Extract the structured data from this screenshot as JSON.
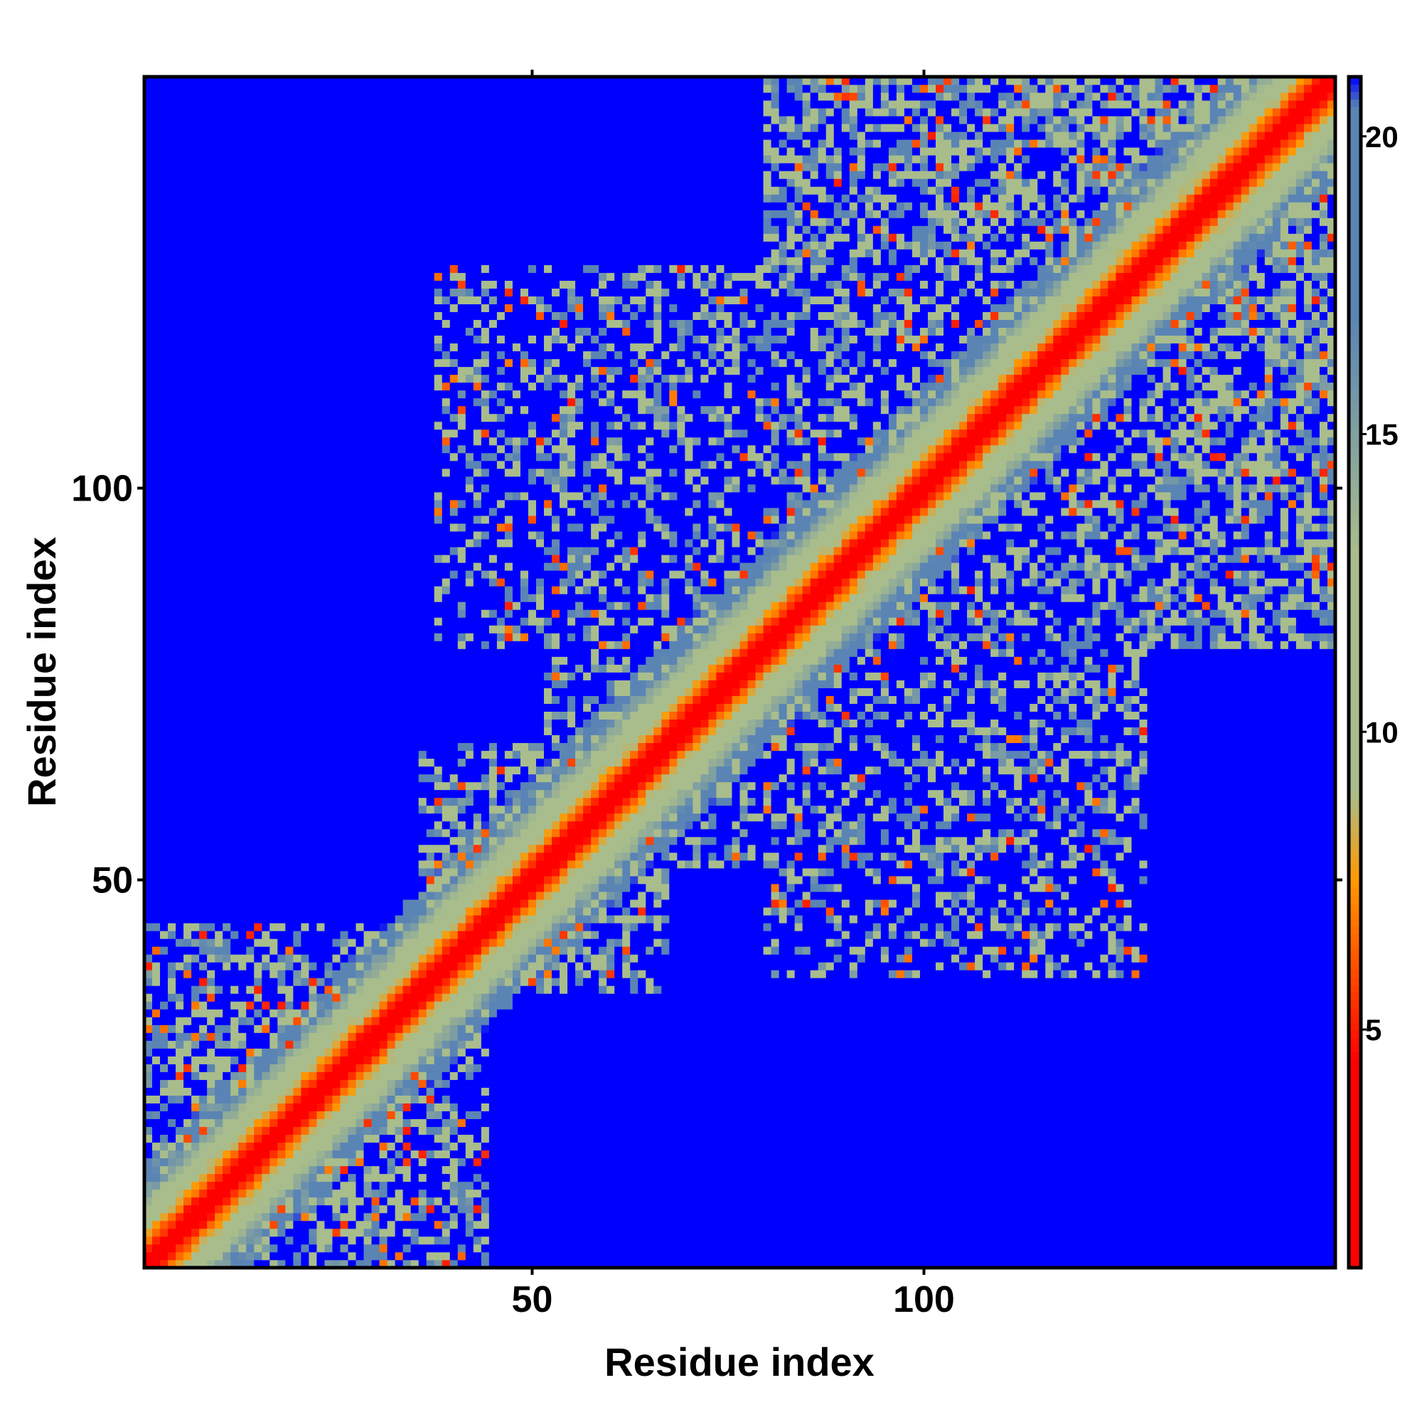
{
  "chart_data": {
    "type": "heatmap",
    "title": "",
    "xlabel": "Residue index",
    "ylabel": "Residue index",
    "x_range": [
      1,
      152
    ],
    "y_range": [
      1,
      152
    ],
    "x_ticks": [
      50,
      100
    ],
    "y_ticks": [
      50,
      100
    ],
    "grid": false,
    "colorbar": {
      "position": "right",
      "range": [
        1,
        21
      ],
      "ticks": [
        5,
        10,
        15,
        20
      ],
      "colors": {
        "low": "#ff0000",
        "mid_orange": "#ff9900",
        "mid_sage": "#a9bd8c",
        "high_steel": "#5a84b4",
        "far": "#0000ff"
      }
    },
    "structure": {
      "metric": "pairwise distance",
      "symmetric": true,
      "diagonal_value": 1,
      "contact_blocks": [
        {
          "i_range": [
            1,
            44
          ],
          "j_range": [
            1,
            44
          ],
          "density": "near-diagonal band"
        },
        {
          "i_range": [
            36,
            67
          ],
          "j_range": [
            36,
            67
          ],
          "density": "moderate"
        },
        {
          "i_range": [
            52,
            128
          ],
          "j_range": [
            57,
            127
          ],
          "density": "sparse off-diagonal wing"
        },
        {
          "i_range": [
            80,
            152
          ],
          "j_range": [
            80,
            152
          ],
          "density": "dense"
        },
        {
          "i_range": [
            80,
            128
          ],
          "j_range": [
            38,
            76
          ],
          "density": "sparse"
        }
      ]
    }
  }
}
